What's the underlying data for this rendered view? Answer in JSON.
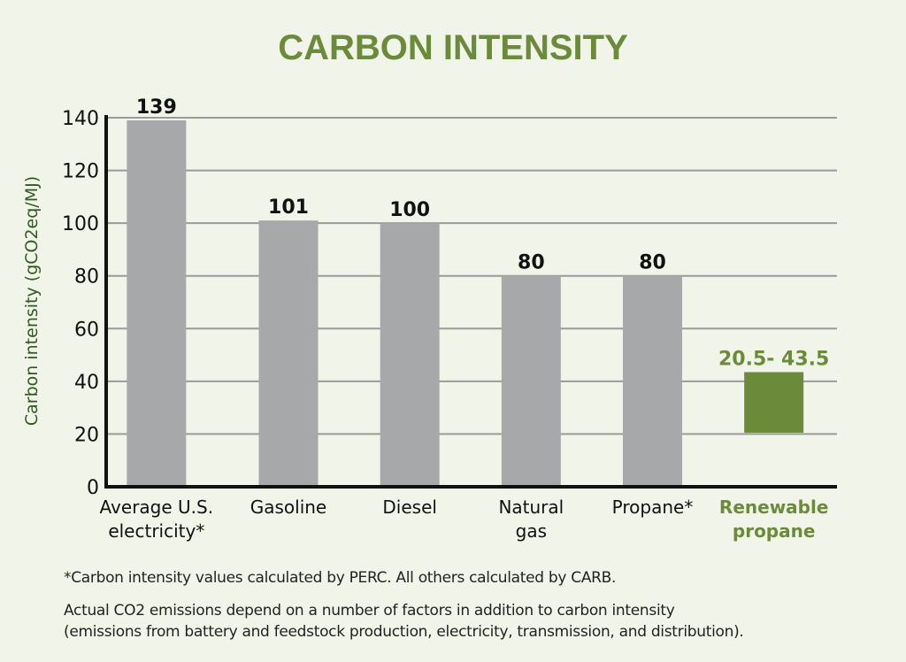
{
  "chart_data": {
    "type": "bar",
    "title": "CARBON INTENSITY",
    "ylabel": "Carbon intensity (gCO2eq/MJ)",
    "xlabel": "",
    "ylim": [
      0,
      140
    ],
    "yticks": [
      0,
      20,
      40,
      60,
      80,
      100,
      120,
      140
    ],
    "grid": true,
    "categories": [
      [
        "Average U.S.",
        "electricity*"
      ],
      [
        "Gasoline"
      ],
      [
        "Diesel"
      ],
      [
        "Natural",
        "gas"
      ],
      [
        "Propane*"
      ],
      [
        "Renewable",
        "propane"
      ]
    ],
    "bars": [
      {
        "low": 0,
        "high": 139,
        "label": "139",
        "highlight": false
      },
      {
        "low": 0,
        "high": 101,
        "label": "101",
        "highlight": false
      },
      {
        "low": 0,
        "high": 100,
        "label": "100",
        "highlight": false
      },
      {
        "low": 0,
        "high": 80,
        "label": "80",
        "highlight": false
      },
      {
        "low": 0,
        "high": 80,
        "label": "80",
        "highlight": false
      },
      {
        "low": 20.5,
        "high": 43.5,
        "label": "20.5- 43.5",
        "highlight": true
      }
    ],
    "colors": {
      "bar": "#a7a8aa",
      "highlight": "#6b8b3b",
      "title": "#6b8b3b",
      "ylabel": "#2f5a1e",
      "grid": "#9a9a9a"
    }
  },
  "footnotes": [
    "*Carbon intensity values calculated by PERC. All others calculated by CARB.",
    "Actual CO2 emissions depend on a number of factors in addition to carbon intensity",
    "(emissions from battery and feedstock production, electricity, transmission, and distribution)."
  ]
}
